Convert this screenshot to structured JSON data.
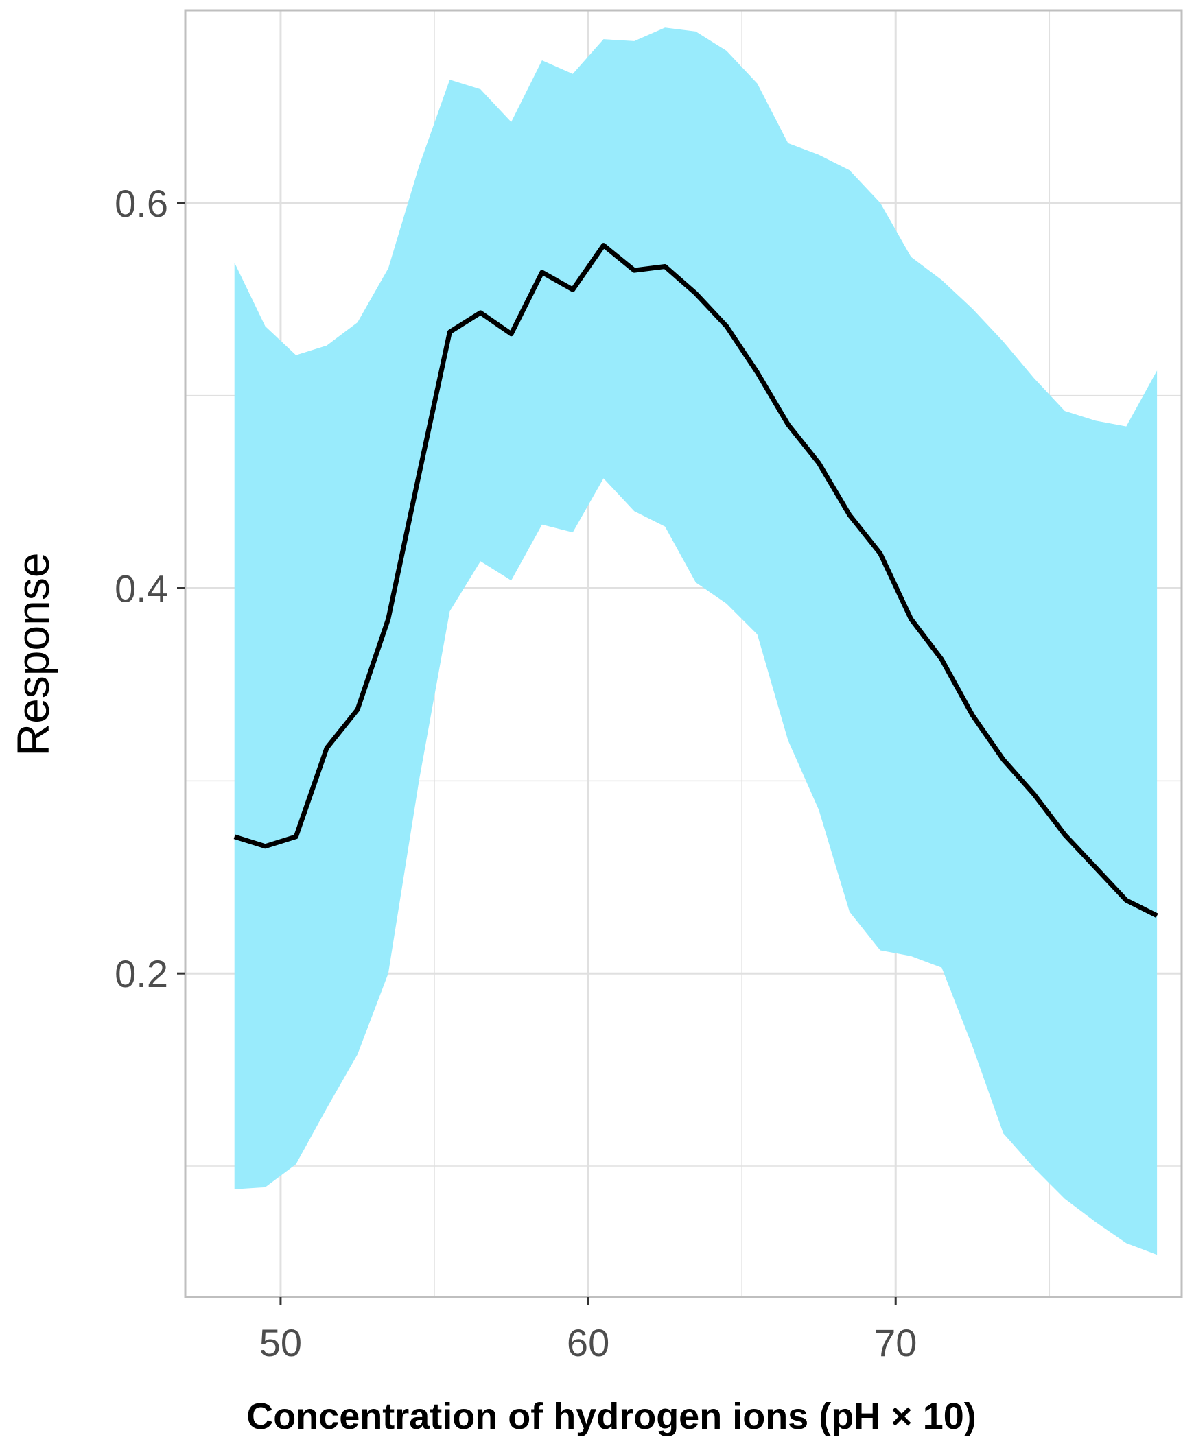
{
  "chart_data": {
    "type": "line",
    "title": "",
    "xlabel": "Concentration of hydrogen ions (pH × 10)",
    "ylabel": "Response",
    "xlim": [
      46.9,
      79.3
    ],
    "ylim": [
      0.032,
      0.7
    ],
    "x_ticks": [
      50,
      60,
      70
    ],
    "x_tick_labels": [
      "50",
      "60",
      "70"
    ],
    "x_minor_ticks": [
      55,
      65,
      75
    ],
    "y_ticks": [
      0.2,
      0.4,
      0.6
    ],
    "y_tick_labels": [
      "0.2",
      "0.4",
      "0.6"
    ],
    "y_minor_ticks": [
      0.1,
      0.3,
      0.5
    ],
    "grid": true,
    "legend": "none",
    "colors": {
      "line": "#000000",
      "band": "#99ebfc",
      "grid": "#e0e0e0",
      "panel_border": "#bfbfbf"
    },
    "x": [
      48.5,
      49.5,
      50.5,
      51.5,
      52.5,
      53.5,
      54.5,
      55.5,
      56.5,
      57.5,
      58.5,
      59.5,
      60.5,
      61.5,
      62.5,
      63.5,
      64.5,
      65.5,
      66.5,
      67.5,
      68.5,
      69.5,
      70.5,
      71.5,
      72.5,
      73.5,
      74.5,
      75.5,
      76.5,
      77.5,
      78.5
    ],
    "y": [
      0.271,
      0.266,
      0.271,
      0.317,
      0.337,
      0.384,
      0.459,
      0.533,
      0.543,
      0.532,
      0.564,
      0.555,
      0.578,
      0.565,
      0.567,
      0.553,
      0.536,
      0.512,
      0.485,
      0.465,
      0.438,
      0.418,
      0.384,
      0.363,
      0.334,
      0.311,
      0.293,
      0.272,
      0.255,
      0.238,
      0.23
    ],
    "lower": [
      0.088,
      0.089,
      0.101,
      0.13,
      0.158,
      0.2,
      0.3,
      0.388,
      0.414,
      0.404,
      0.433,
      0.429,
      0.457,
      0.44,
      0.432,
      0.403,
      0.392,
      0.376,
      0.321,
      0.285,
      0.232,
      0.212,
      0.209,
      0.203,
      0.162,
      0.117,
      0.099,
      0.083,
      0.071,
      0.06,
      0.054
    ],
    "upper": [
      0.569,
      0.536,
      0.521,
      0.526,
      0.538,
      0.566,
      0.619,
      0.664,
      0.659,
      0.642,
      0.674,
      0.667,
      0.685,
      0.684,
      0.691,
      0.689,
      0.679,
      0.662,
      0.631,
      0.625,
      0.617,
      0.6,
      0.572,
      0.56,
      0.545,
      0.528,
      0.509,
      0.492,
      0.487,
      0.484,
      0.513
    ]
  }
}
